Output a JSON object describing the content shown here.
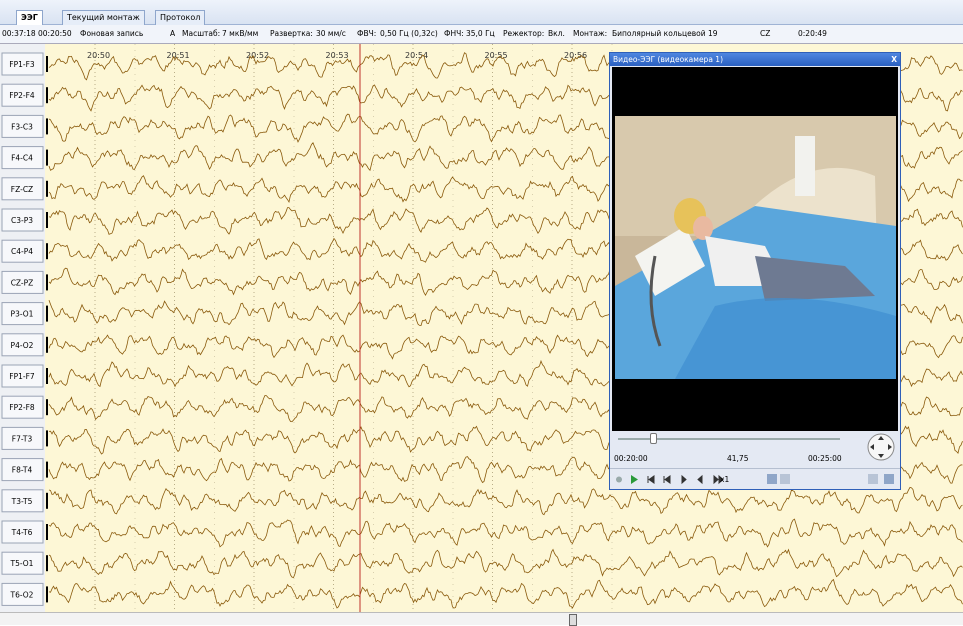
{
  "tabs": [
    "ЭЭГ",
    "Текущий монтаж",
    "Протокол"
  ],
  "toolbar": {
    "clock": "00:37:18",
    "position": "00:20:50",
    "record": "Фоновая запись",
    "mode": "A",
    "scale_label": "Масштаб:",
    "scale": "7 мкВ/мм",
    "sweep_label": "Развертка:",
    "sweep": "30 мм/с",
    "hpf_label": "ФВЧ:",
    "hpf": "0,50 Гц (0,32с)",
    "lpf_label": "ФНЧ:",
    "lpf": "35,0 Гц",
    "notch_label": "Режектор:",
    "notch": "Вкл.",
    "montage_label": "Монтаж:",
    "montage": "Биполярный кольцевой 19",
    "reference": "CZ",
    "time": "0:20:49"
  },
  "time_marks": [
    "20:50",
    "20:51",
    "20:52",
    "20:53",
    "20:54",
    "20:55",
    "20:56"
  ],
  "channels": [
    "FP1-F3",
    "FP2-F4",
    "F3-C3",
    "F4-C4",
    "FZ-CZ",
    "C3-P3",
    "C4-P4",
    "CZ-PZ",
    "P3-O1",
    "P4-O2",
    "FP1-F7",
    "FP2-F8",
    "F7-T3",
    "F8-T4",
    "T3-T5",
    "T4-T6",
    "T5-O1",
    "T6-O2"
  ],
  "video": {
    "title": "Видео-ЭЭГ (видеокамера 1)",
    "start": "00:20:00",
    "current": "41,75",
    "end": "00:25:00",
    "speed": "x1"
  }
}
